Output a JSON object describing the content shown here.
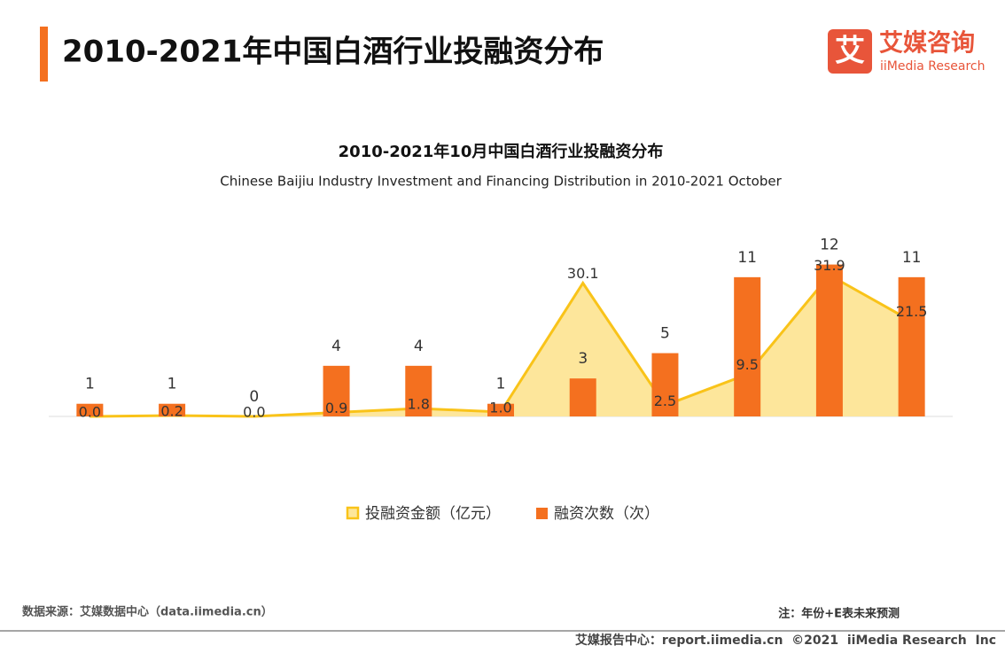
{
  "header": {
    "title": "2010-2021年中国白酒行业投融资分布",
    "logo_icon": "艾",
    "logo_cn": "艾媒咨询",
    "logo_en": "iiMedia Research"
  },
  "chart_data": {
    "type": "bar",
    "title": "2010-2021年10月中国白酒行业投融资分布",
    "subtitle": "Chinese Baijiu Industry Investment and Financing Distribution in 2010-2021 October",
    "categories": [
      null,
      null,
      null,
      null,
      null,
      null,
      null,
      null,
      null,
      null,
      null
    ],
    "ylim": [
      0,
      14
    ],
    "y2lim": [
      0,
      40
    ],
    "series": [
      {
        "name": "投融资金额（亿元）",
        "type": "area",
        "axis": "y2",
        "color": "#f9c319",
        "fill": "#fde69b",
        "values": [
          0,
          0.2,
          0,
          0.9,
          1.8,
          1,
          30.1,
          2.5,
          9.5,
          31.9,
          21.5
        ],
        "value_labels": [
          "0.0",
          "0.2",
          "0.0",
          "0.9",
          "1.8",
          "1.0",
          "30.1",
          "2.5",
          "9.5",
          "31.9",
          "21.5"
        ]
      },
      {
        "name": "融资次数（次）",
        "type": "bar",
        "color": "#f4701f",
        "values": [
          1,
          1,
          0,
          4,
          4,
          1,
          3,
          5,
          11,
          12,
          11
        ]
      }
    ]
  },
  "footer": {
    "source": "数据来源：艾媒数据中心（data.iimedia.cn）",
    "note": "注：年份+E表未来预测",
    "copyright": "艾媒报告中心：report.iimedia.cn  ©2021  iiMedia Research  Inc"
  }
}
